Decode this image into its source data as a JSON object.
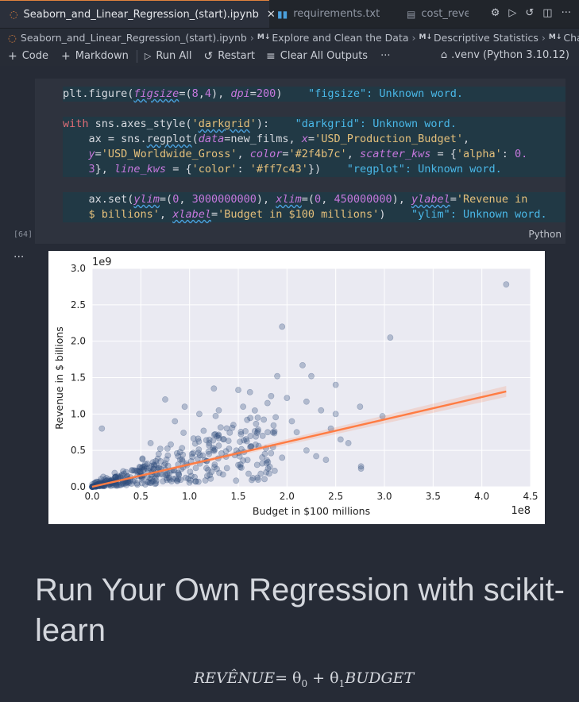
{
  "tabs": [
    {
      "label": "Seaborn_and_Linear_Regression_(start).ipynb",
      "icon": "jupyter-icon",
      "active": true
    },
    {
      "label": "requirements.txt",
      "icon": "list-file-icon",
      "active": false
    },
    {
      "label": "cost_reve",
      "icon": "file-icon",
      "active": false
    }
  ],
  "breadcrumb": [
    "Seaborn_and_Linear_Regression_(start).ipynb",
    "Explore and Clean the Data",
    "Descriptive Statistics",
    "Challe"
  ],
  "breadcrumb_md_tag": "M↓",
  "toolbar": {
    "code": "Code",
    "markdown": "Markdown",
    "run_all": "Run All",
    "restart": "Restart",
    "clear_outputs": "Clear All Outputs",
    "more": "···",
    "kernel": ".venv (Python 3.10.12)"
  },
  "cell": {
    "exec_count": "[64]",
    "language": "Python",
    "hints": {
      "figsize": "\"figsize\": Unknown word.",
      "darkgrid": "\"darkgrid\": Unknown word.",
      "regplot": "\"regplot\": Unknown word.",
      "ylim": "\"ylim\": Unknown word."
    }
  },
  "output_dots": "···",
  "markdown": {
    "heading": "Run Your Own Regression with scikit-learn",
    "formula_lhs": "REVÊNUE",
    "formula_rhs": "= θ",
    "formula_sub0": "0",
    "formula_mid": " + θ",
    "formula_sub1": "1",
    "formula_end": "BUDGET"
  },
  "chart_data": {
    "type": "scatter",
    "xlabel": "Budget in $100 millions",
    "ylabel": "Revenue in $ billions",
    "x_offset_label": "1e8",
    "y_offset_label": "1e9",
    "xlim": [
      0,
      4.5
    ],
    "ylim": [
      0,
      3.0
    ],
    "x_ticks": [
      "0.0",
      "0.5",
      "1.0",
      "1.5",
      "2.0",
      "2.5",
      "3.0",
      "3.5",
      "4.0",
      "4.5"
    ],
    "y_ticks": [
      "0.0",
      "0.5",
      "1.0",
      "1.5",
      "2.0",
      "2.5",
      "3.0"
    ],
    "grid": true,
    "style": "darkgrid",
    "scatter_color": "#2f4b7c",
    "line_color": "#ff7c43",
    "regression_line": {
      "x": [
        0,
        4.25
      ],
      "y": [
        0,
        1.31
      ]
    },
    "points": [
      [
        4.25,
        2.78
      ],
      [
        1.95,
        2.2
      ],
      [
        3.06,
        2.05
      ],
      [
        2.16,
        1.67
      ],
      [
        2.5,
        1.4
      ],
      [
        1.9,
        1.52
      ],
      [
        2.25,
        1.52
      ],
      [
        1.25,
        1.35
      ],
      [
        1.5,
        1.33
      ],
      [
        1.62,
        1.3
      ],
      [
        2.75,
        1.1
      ],
      [
        2.98,
        0.97
      ],
      [
        2.5,
        1.0
      ],
      [
        2.76,
        0.28
      ],
      [
        2.76,
        0.25
      ],
      [
        0.1,
        0.8
      ],
      [
        2.63,
        0.6
      ],
      [
        2.3,
        0.42
      ],
      [
        2.4,
        0.37
      ],
      [
        1.65,
        0.12
      ],
      [
        2.0,
        1.22
      ],
      [
        2.2,
        1.17
      ],
      [
        1.8,
        1.15
      ],
      [
        1.55,
        1.1
      ],
      [
        2.35,
        1.05
      ],
      [
        1.3,
        1.05
      ],
      [
        0.75,
        1.2
      ],
      [
        0.95,
        1.1
      ],
      [
        1.1,
        1.0
      ],
      [
        1.7,
        0.95
      ],
      [
        2.05,
        0.9
      ],
      [
        1.45,
        0.85
      ],
      [
        0.85,
        0.9
      ],
      [
        1.75,
        0.7
      ],
      [
        2.1,
        0.75
      ],
      [
        2.45,
        0.8
      ],
      [
        2.55,
        0.65
      ],
      [
        2.2,
        0.5
      ],
      [
        1.95,
        0.4
      ],
      [
        1.5,
        0.3
      ],
      [
        1.2,
        0.45
      ],
      [
        0.6,
        0.6
      ]
    ]
  }
}
